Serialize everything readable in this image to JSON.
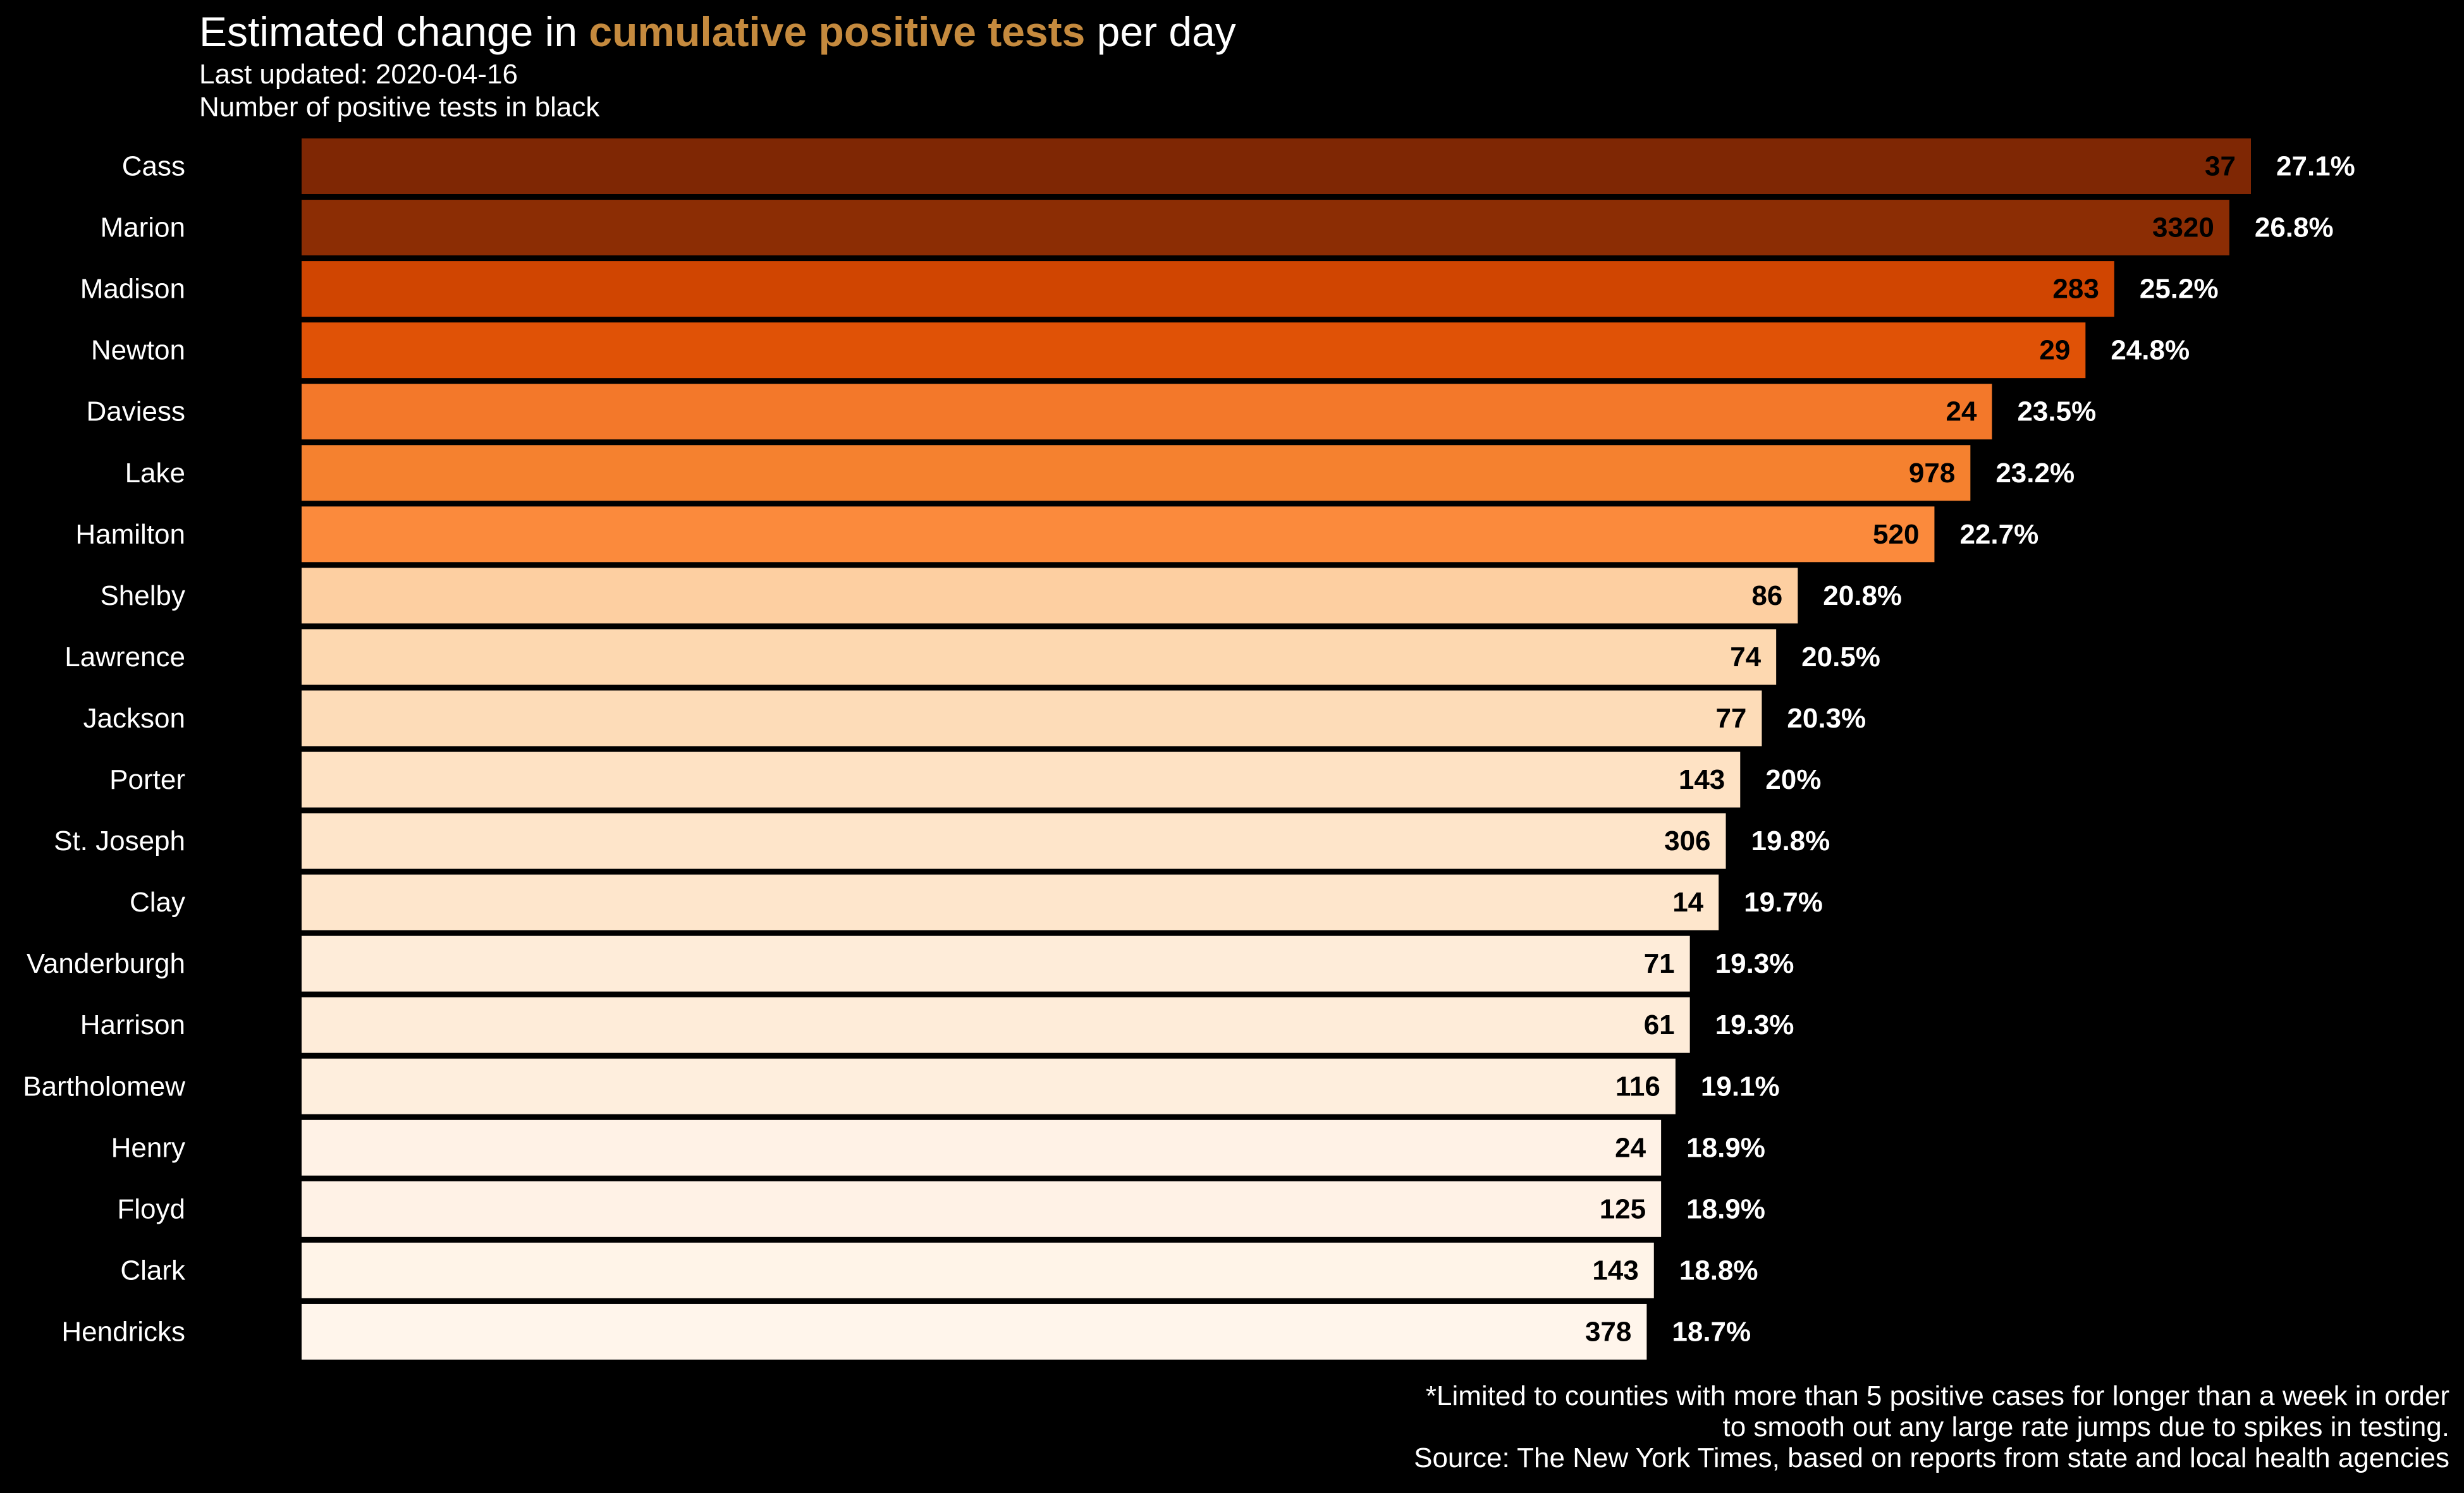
{
  "title": {
    "prefix": "Estimated change in ",
    "highlight": "cumulative positive tests",
    "suffix": " per day",
    "highlight_color": "#c58a3e"
  },
  "subtitle_lines": [
    "Last updated: 2020-04-16",
    "Number of positive tests in black"
  ],
  "footer_lines": [
    "*Limited to counties with more than 5 positive cases for longer than a week in order",
    "to smooth out any large rate jumps due to spikes in testing.",
    "Source: The New York Times, based on reports from state and local health agencies"
  ],
  "chart_data": {
    "type": "bar",
    "orientation": "horizontal",
    "categories": [
      "Cass",
      "Marion",
      "Madison",
      "Newton",
      "Daviess",
      "Lake",
      "Hamilton",
      "Shelby",
      "Lawrence",
      "Jackson",
      "Porter",
      "St. Joseph",
      "Clay",
      "Vanderburgh",
      "Harrison",
      "Bartholomew",
      "Henry",
      "Floyd",
      "Clark",
      "Hendricks"
    ],
    "values": [
      27.1,
      26.8,
      25.2,
      24.8,
      23.5,
      23.2,
      22.7,
      20.8,
      20.5,
      20.3,
      20,
      19.8,
      19.7,
      19.3,
      19.3,
      19.1,
      18.9,
      18.9,
      18.8,
      18.7
    ],
    "value_labels": [
      "27.1%",
      "26.8%",
      "25.2%",
      "24.8%",
      "23.5%",
      "23.2%",
      "22.7%",
      "20.8%",
      "20.5%",
      "20.3%",
      "20%",
      "19.8%",
      "19.7%",
      "19.3%",
      "19.3%",
      "19.1%",
      "18.9%",
      "18.9%",
      "18.8%",
      "18.7%"
    ],
    "positive_tests": [
      37,
      3320,
      283,
      29,
      24,
      978,
      520,
      86,
      74,
      77,
      143,
      306,
      14,
      71,
      61,
      116,
      24,
      125,
      143,
      378
    ],
    "bar_colors": [
      "#7f2704",
      "#8c2d04",
      "#d04501",
      "#e05206",
      "#f3782a",
      "#f5812f",
      "#fb8a3c",
      "#fdcfa1",
      "#fdd8b0",
      "#fddcb8",
      "#fee2c4",
      "#fee5ca",
      "#fee6cc",
      "#feecd9",
      "#feecd9",
      "#feeedd",
      "#fff2e6",
      "#fff2e6",
      "#fff4e8",
      "#fff5eb"
    ],
    "xlim": [
      0,
      27.1
    ],
    "grid": false,
    "legend": "none"
  }
}
